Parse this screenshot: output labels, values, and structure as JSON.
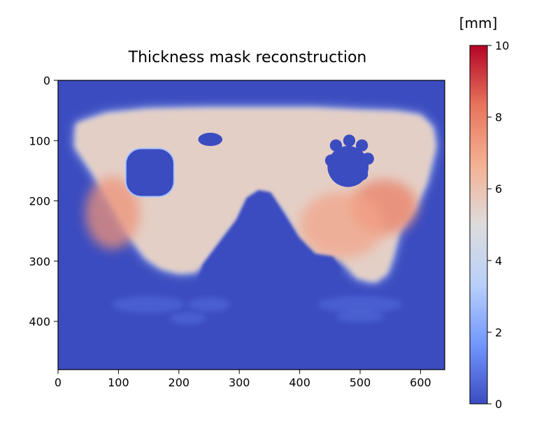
{
  "chart_data": {
    "type": "heatmap",
    "title": "Thickness mask reconstruction",
    "colorbar_unit": "[mm]",
    "colormap": "coolwarm",
    "colormap_stops": [
      "#3b4cc0",
      "#7397fe",
      "#b9d0f9",
      "#dddcdc",
      "#f5b194",
      "#e7745b",
      "#b40426"
    ],
    "background_color": "#3b4cc0",
    "xlim": [
      0,
      640
    ],
    "ylim": [
      480,
      0
    ],
    "xticks": [
      0,
      100,
      200,
      300,
      400,
      500,
      600
    ],
    "yticks": [
      0,
      100,
      200,
      300,
      400
    ],
    "value_range": [
      0,
      10
    ],
    "colorbar_ticks": [
      0,
      2,
      4,
      6,
      8,
      10
    ],
    "xlabel": "",
    "ylabel": "",
    "image_size": [
      640,
      480
    ],
    "regions": [
      {
        "name": "mask-body",
        "shape": "outline",
        "value": 5.5
      },
      {
        "name": "left-hotspot",
        "shape": "ellipse",
        "cx": 90,
        "cy": 220,
        "rx": 45,
        "ry": 60,
        "value": 7.5
      },
      {
        "name": "right-hotspot",
        "shape": "ellipse",
        "cx": 540,
        "cy": 210,
        "rx": 55,
        "ry": 45,
        "value": 8.0
      },
      {
        "name": "center-warm",
        "shape": "ellipse",
        "cx": 470,
        "cy": 240,
        "rx": 70,
        "ry": 55,
        "value": 7.0
      },
      {
        "name": "left-eye-hole",
        "shape": "roundrect",
        "cx": 152,
        "cy": 153,
        "rx": 40,
        "ry": 40,
        "value": 0
      },
      {
        "name": "small-hole",
        "shape": "ellipse",
        "cx": 252,
        "cy": 98,
        "rx": 20,
        "ry": 11,
        "value": 0
      },
      {
        "name": "right-eye-hole",
        "shape": "ellipse",
        "cx": 480,
        "cy": 143,
        "rx": 34,
        "ry": 34,
        "value": 0
      },
      {
        "name": "nose-notch",
        "shape": "outline",
        "value": 0
      }
    ]
  }
}
